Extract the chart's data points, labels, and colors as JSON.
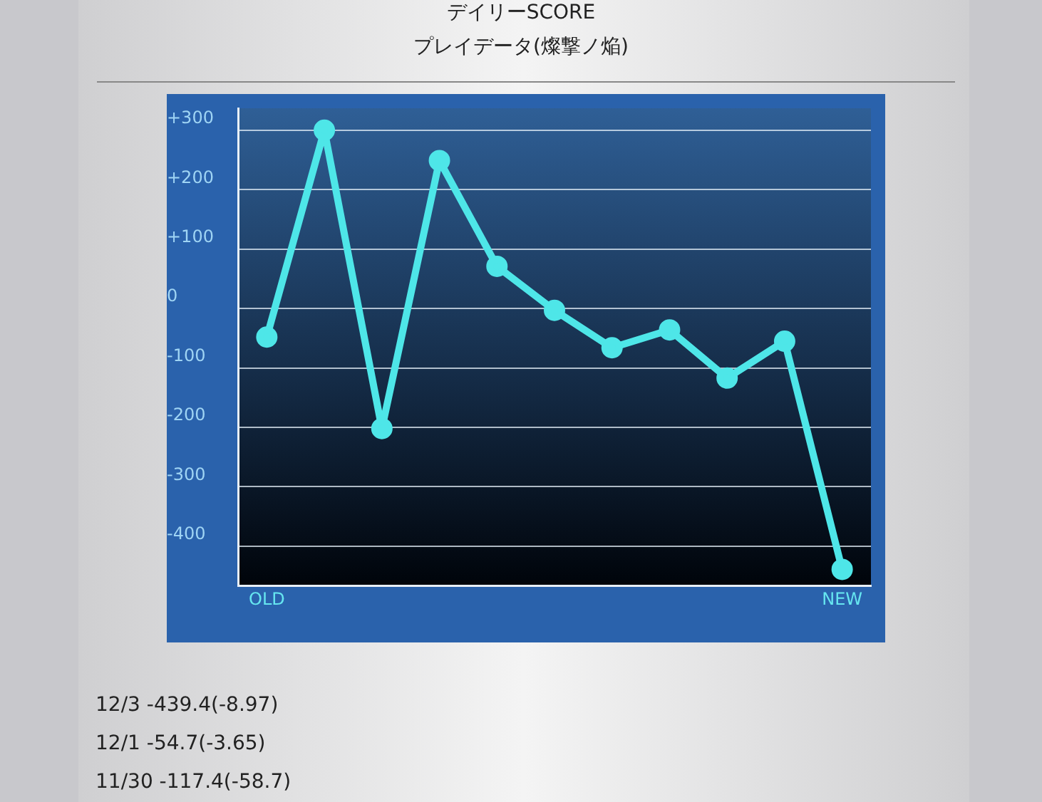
{
  "chart_data": {
    "type": "line",
    "title": "デイリーSCORE",
    "subtitle": "プレイデータ(燦撃ノ焔)",
    "categories": [
      "OLD",
      null,
      null,
      null,
      null,
      null,
      null,
      null,
      null,
      null,
      "NEW"
    ],
    "series": [
      {
        "color": "#4ee6e8",
        "values": [
          -48,
          300,
          -202,
          249,
          71,
          -3,
          -66,
          -36,
          -117,
          -55,
          -439
        ]
      }
    ],
    "ylim": [
      -466,
      337
    ],
    "yticks": [
      {
        "value": -400,
        "label": "-400"
      },
      {
        "value": -300,
        "label": "-300"
      },
      {
        "value": -200,
        "label": "-200"
      },
      {
        "value": -100,
        "label": "-100"
      },
      {
        "value": 0,
        "label": "0"
      },
      {
        "value": 100,
        "label": "+100"
      },
      {
        "value": 200,
        "label": "+200"
      },
      {
        "value": 300,
        "label": "+300"
      }
    ],
    "grid": "y",
    "legend": false,
    "marker": "circle",
    "line_style": "solid",
    "annotations": [
      "12/3 -439.4(-8.97)",
      "12/1 -54.7(-3.65)",
      "11/30 -117.4(-58.7)"
    ]
  }
}
